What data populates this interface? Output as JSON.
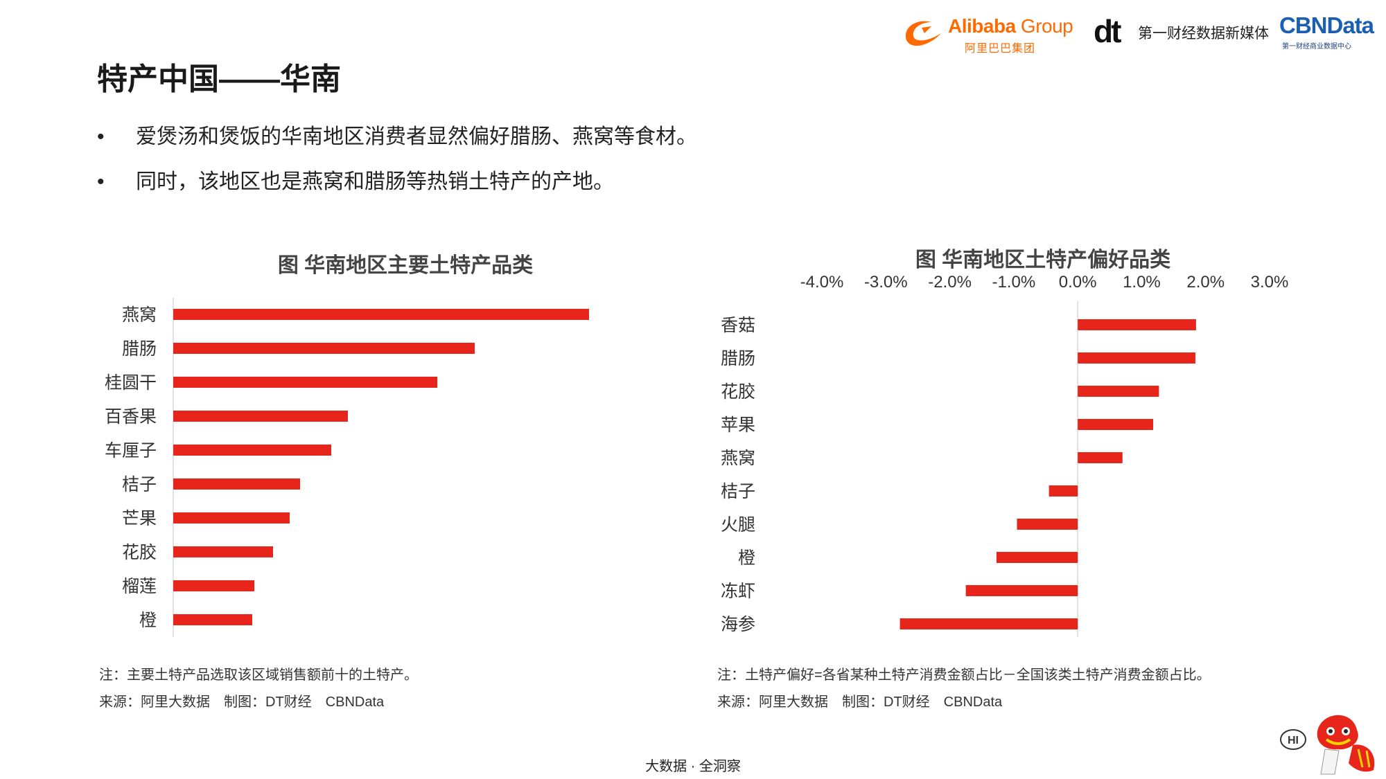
{
  "header": {
    "alibaba_name": "Alibaba",
    "alibaba_group": "Group",
    "alibaba_cn": "阿里巴巴集团",
    "dt_mark": "dt",
    "dt_text": "第一财经数据新媒体",
    "cbn_main": "CBNData",
    "cbn_sub": "第一财经商业数据中心"
  },
  "page": {
    "title": "特产中国——华南",
    "bullet_glyph": "•",
    "bullets": [
      "爱煲汤和煲饭的华南地区消费者显然偏好腊肠、燕窝等食材。",
      "同时，该地区也是燕窝和腊肠等热销土特产的产地。"
    ]
  },
  "notes": {
    "left_note": "注：主要土特产品选取该区域销售额前十的土特产。",
    "left_source": "来源：阿里大数据　制图：DT财经　CBNData",
    "right_note": "注：土特产偏好=各省某种土特产消费金额占比－全国该类土特产消费金额占比。",
    "right_source": "来源：阿里大数据　制图：DT财经　CBNData"
  },
  "footer": {
    "text": "大数据 · 全洞察"
  },
  "mascot": {
    "label": "HI"
  },
  "colors": {
    "bar": "#e8251b",
    "axis": "#d9d9d9",
    "text": "#333333"
  },
  "chart_data": [
    {
      "type": "bar",
      "orientation": "horizontal",
      "title": "图 华南地区主要土特产品类",
      "categories": [
        "燕窝",
        "腊肠",
        "桂圆干",
        "百香果",
        "车厘子",
        "桔子",
        "芒果",
        "花胶",
        "榴莲",
        "橙"
      ],
      "values": [
        100,
        72.5,
        63.5,
        42,
        38,
        30.5,
        28,
        24,
        19.5,
        19
      ],
      "xlim": [
        0,
        100
      ],
      "axis_labels_shown": false
    },
    {
      "type": "bar",
      "orientation": "horizontal",
      "title": "图 华南地区土特产偏好品类",
      "categories": [
        "香菇",
        "腊肠",
        "花胶",
        "苹果",
        "燕窝",
        "桔子",
        "火腿",
        "橙",
        "冻虾",
        "海参"
      ],
      "values": [
        1.85,
        1.84,
        1.27,
        1.18,
        0.7,
        -0.45,
        -0.95,
        -1.27,
        -1.75,
        -2.78
      ],
      "xlim": [
        -4.0,
        3.0
      ],
      "xticks": [
        -4.0,
        -3.0,
        -2.0,
        -1.0,
        0.0,
        1.0,
        2.0,
        3.0
      ],
      "xtick_labels": [
        "-4.0%",
        "-3.0%",
        "-2.0%",
        "-1.0%",
        "0.0%",
        "1.0%",
        "2.0%",
        "3.0%"
      ],
      "axis_position": "top"
    }
  ]
}
